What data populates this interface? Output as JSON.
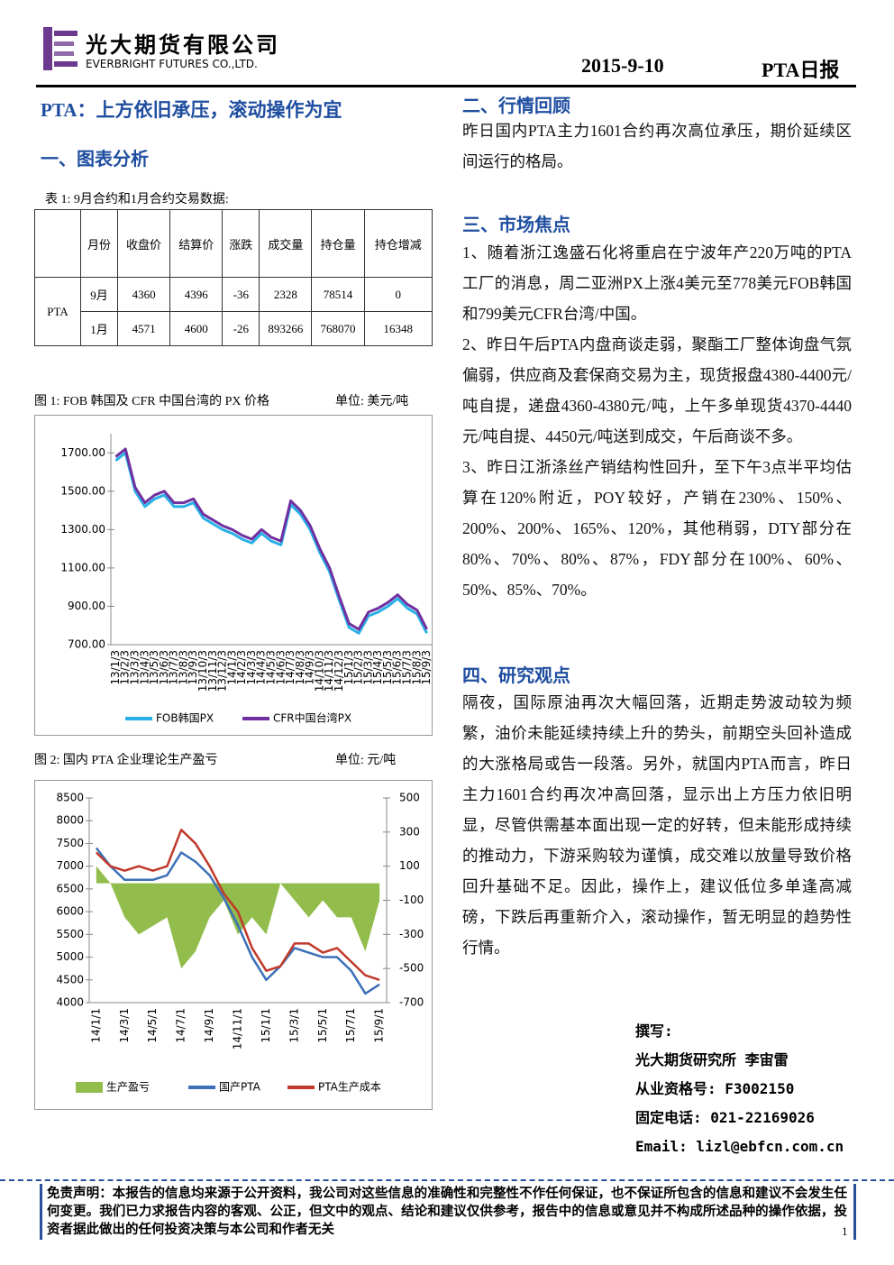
{
  "header": {
    "company": "光大期货有限公司",
    "company_en": "EVERBRIGHT FUTURES CO.,LTD.",
    "date": "2015-9-10",
    "report": "PTA日报"
  },
  "title": "PTA：上方依旧承压，滚动操作为宜",
  "section1": "一、图表分析",
  "table": {
    "caption": "表 1: 9月合约和1月合约交易数据:",
    "header": [
      "月份",
      "收盘价",
      "结算价",
      "涨跌",
      "成交量",
      "持仓量",
      "持仓增减"
    ],
    "group": "PTA",
    "rows": [
      [
        "9月",
        4360,
        4396,
        -36,
        2328,
        78514,
        0
      ],
      [
        "1月",
        4571,
        4600,
        -26,
        893266,
        768070,
        16348
      ]
    ]
  },
  "chart_data": [
    {
      "type": "line",
      "title": "图 1: FOB 韩国及 CFR 中国台湾的 PX 价格",
      "unit": "单位: 美元/吨",
      "categories": [
        "13/1/3",
        "13/2/3",
        "13/3/3",
        "13/4/3",
        "13/5/3",
        "13/6/3",
        "13/7/3",
        "13/8/3",
        "13/9/3",
        "13/10/3",
        "13/11/3",
        "13/12/3",
        "14/1/3",
        "14/2/3",
        "14/3/3",
        "14/4/3",
        "14/5/3",
        "14/6/3",
        "14/7/3",
        "14/8/3",
        "14/9/3",
        "14/10/3",
        "14/11/3",
        "14/12/3",
        "15/1/3",
        "15/2/3",
        "15/3/3",
        "15/4/3",
        "15/5/3",
        "15/6/3",
        "15/7/3",
        "15/8/3",
        "15/9/3"
      ],
      "series": [
        {
          "name": "FOB韩国PX",
          "color": "#29b0e8",
          "values": [
            1660,
            1700,
            1500,
            1420,
            1460,
            1480,
            1420,
            1420,
            1440,
            1360,
            1330,
            1300,
            1280,
            1250,
            1230,
            1280,
            1240,
            1220,
            1430,
            1380,
            1300,
            1180,
            1080,
            930,
            790,
            760,
            850,
            870,
            900,
            940,
            890,
            860,
            760
          ]
        },
        {
          "name": "CFR中国台湾PX",
          "color": "#7030a0",
          "values": [
            1680,
            1720,
            1520,
            1440,
            1480,
            1500,
            1440,
            1440,
            1460,
            1380,
            1350,
            1320,
            1300,
            1270,
            1250,
            1300,
            1260,
            1240,
            1450,
            1400,
            1320,
            1200,
            1100,
            950,
            810,
            780,
            870,
            890,
            920,
            960,
            910,
            880,
            780
          ]
        }
      ],
      "ylim": [
        700,
        1800
      ],
      "yticks": [
        {
          "value": 700,
          "label": "700.00"
        },
        {
          "value": 900,
          "label": "900.00"
        },
        {
          "value": 1100,
          "label": "1100.00"
        },
        {
          "value": 1300,
          "label": "1300.00"
        },
        {
          "value": 1500,
          "label": "1500.00"
        },
        {
          "value": 1700,
          "label": "1700.00"
        }
      ]
    },
    {
      "type": "line",
      "title": "图 2: 国内 PTA 企业理论生产盈亏",
      "unit": "单位: 元/吨",
      "categories": [
        "14/1/1",
        null,
        "14/3/1",
        null,
        "14/5/1",
        null,
        "14/7/1",
        null,
        "14/9/1",
        null,
        "14/11/1",
        null,
        "15/1/1",
        null,
        "15/3/1",
        null,
        "15/5/1",
        null,
        "15/7/1",
        null,
        "15/9/1"
      ],
      "series": [
        {
          "name": "生产盈亏",
          "color": "#92bd4c",
          "type": "area",
          "axis": "y2",
          "values": [
            100,
            0,
            -200,
            -300,
            -250,
            -200,
            -500,
            -400,
            -200,
            -100,
            -300,
            -200,
            -300,
            0,
            -100,
            -200,
            -100,
            -200,
            -200,
            -400,
            -100
          ]
        },
        {
          "name": "国产PTA",
          "color": "#3b70b8",
          "values": [
            7400,
            7000,
            6700,
            6700,
            6700,
            6800,
            7300,
            7100,
            6800,
            6300,
            5700,
            5000,
            4500,
            4800,
            5200,
            5100,
            5000,
            5000,
            4700,
            4200,
            4400
          ]
        },
        {
          "name": "PTA生产成本",
          "color": "#c0392b",
          "values": [
            7300,
            7000,
            6900,
            7000,
            6900,
            7000,
            7800,
            7500,
            7000,
            6400,
            6000,
            5200,
            4700,
            4800,
            5300,
            5300,
            5100,
            5200,
            4900,
            4600,
            4500
          ]
        }
      ],
      "ylim": [
        4000,
        8500
      ],
      "yticks": [
        4000,
        4500,
        5000,
        5500,
        6000,
        6500,
        7000,
        7500,
        8000,
        8500
      ],
      "y2lim": [
        -700,
        500
      ],
      "y2ticks": [
        -700,
        -500,
        -300,
        -100,
        100,
        300,
        500
      ]
    }
  ],
  "section2": {
    "heading": "二、行情回顾",
    "paragraphs": [
      "昨日国内PTA主力1601合约再次高位承压，期价延续区间运行的格局。"
    ]
  },
  "section3": {
    "heading": "三、市场焦点",
    "paragraphs": [
      "1、随着浙江逸盛石化将重启在宁波年产220万吨的PTA工厂的消息，周二亚洲PX上涨4美元至778美元FOB韩国和799美元CFR台湾/中国。",
      "2、昨日午后PTA内盘商谈走弱，聚酯工厂整体询盘气氛偏弱，供应商及套保商交易为主，现货报盘4380-4400元/吨自提，递盘4360-4380元/吨，上午多单现货4370-4440元/吨自提、4450元/吨送到成交，午后商谈不多。",
      "3、昨日江浙涤丝产销结构性回升，至下午3点半平均估算在120%附近，POY较好，产销在230%、150%、200%、200%、165%、120%，其他稍弱，DTY部分在80%、70%、80%、87%，FDY部分在100%、60%、50%、85%、70%。"
    ]
  },
  "section4": {
    "heading": "四、研究观点",
    "paragraphs": [
      "隔夜，国际原油再次大幅回落，近期走势波动较为频繁，油价未能延续持续上升的势头，前期空头回补造成的大涨格局或告一段落。另外，就国内PTA而言，昨日主力1601合约再次冲高回落，显示出上方压力依旧明显，尽管供需基本面出现一定的好转，但未能形成持续的推动力，下游采购较为谨慎，成交难以放量导致价格回升基础不足。因此，操作上，建议低位多单逢高减磅，下跌后再重新介入，滚动操作，暂无明显的趋势性行情。"
    ]
  },
  "author": {
    "label": "撰写:",
    "name": "光大期货研究所 李宙雷",
    "license": "从业资格号: F3002150",
    "phone": "固定电话: 021-22169026",
    "email": "Email: lizl@ebfcn.com.cn"
  },
  "footer": {
    "disclaimer": "免责声明：本报告的信息均来源于公开资料，我公司对这些信息的准确性和完整性不作任何保证，也不保证所包含的信息和建议不会发生任何变更。我们已力求报告内容的客观、公正，但文中的观点、结论和建议仅供参考，报告中的信息或意见并不构成所述品种的操作依据，投资者据此做出的任何投资决策与本公司和作者无关",
    "page": "1"
  }
}
